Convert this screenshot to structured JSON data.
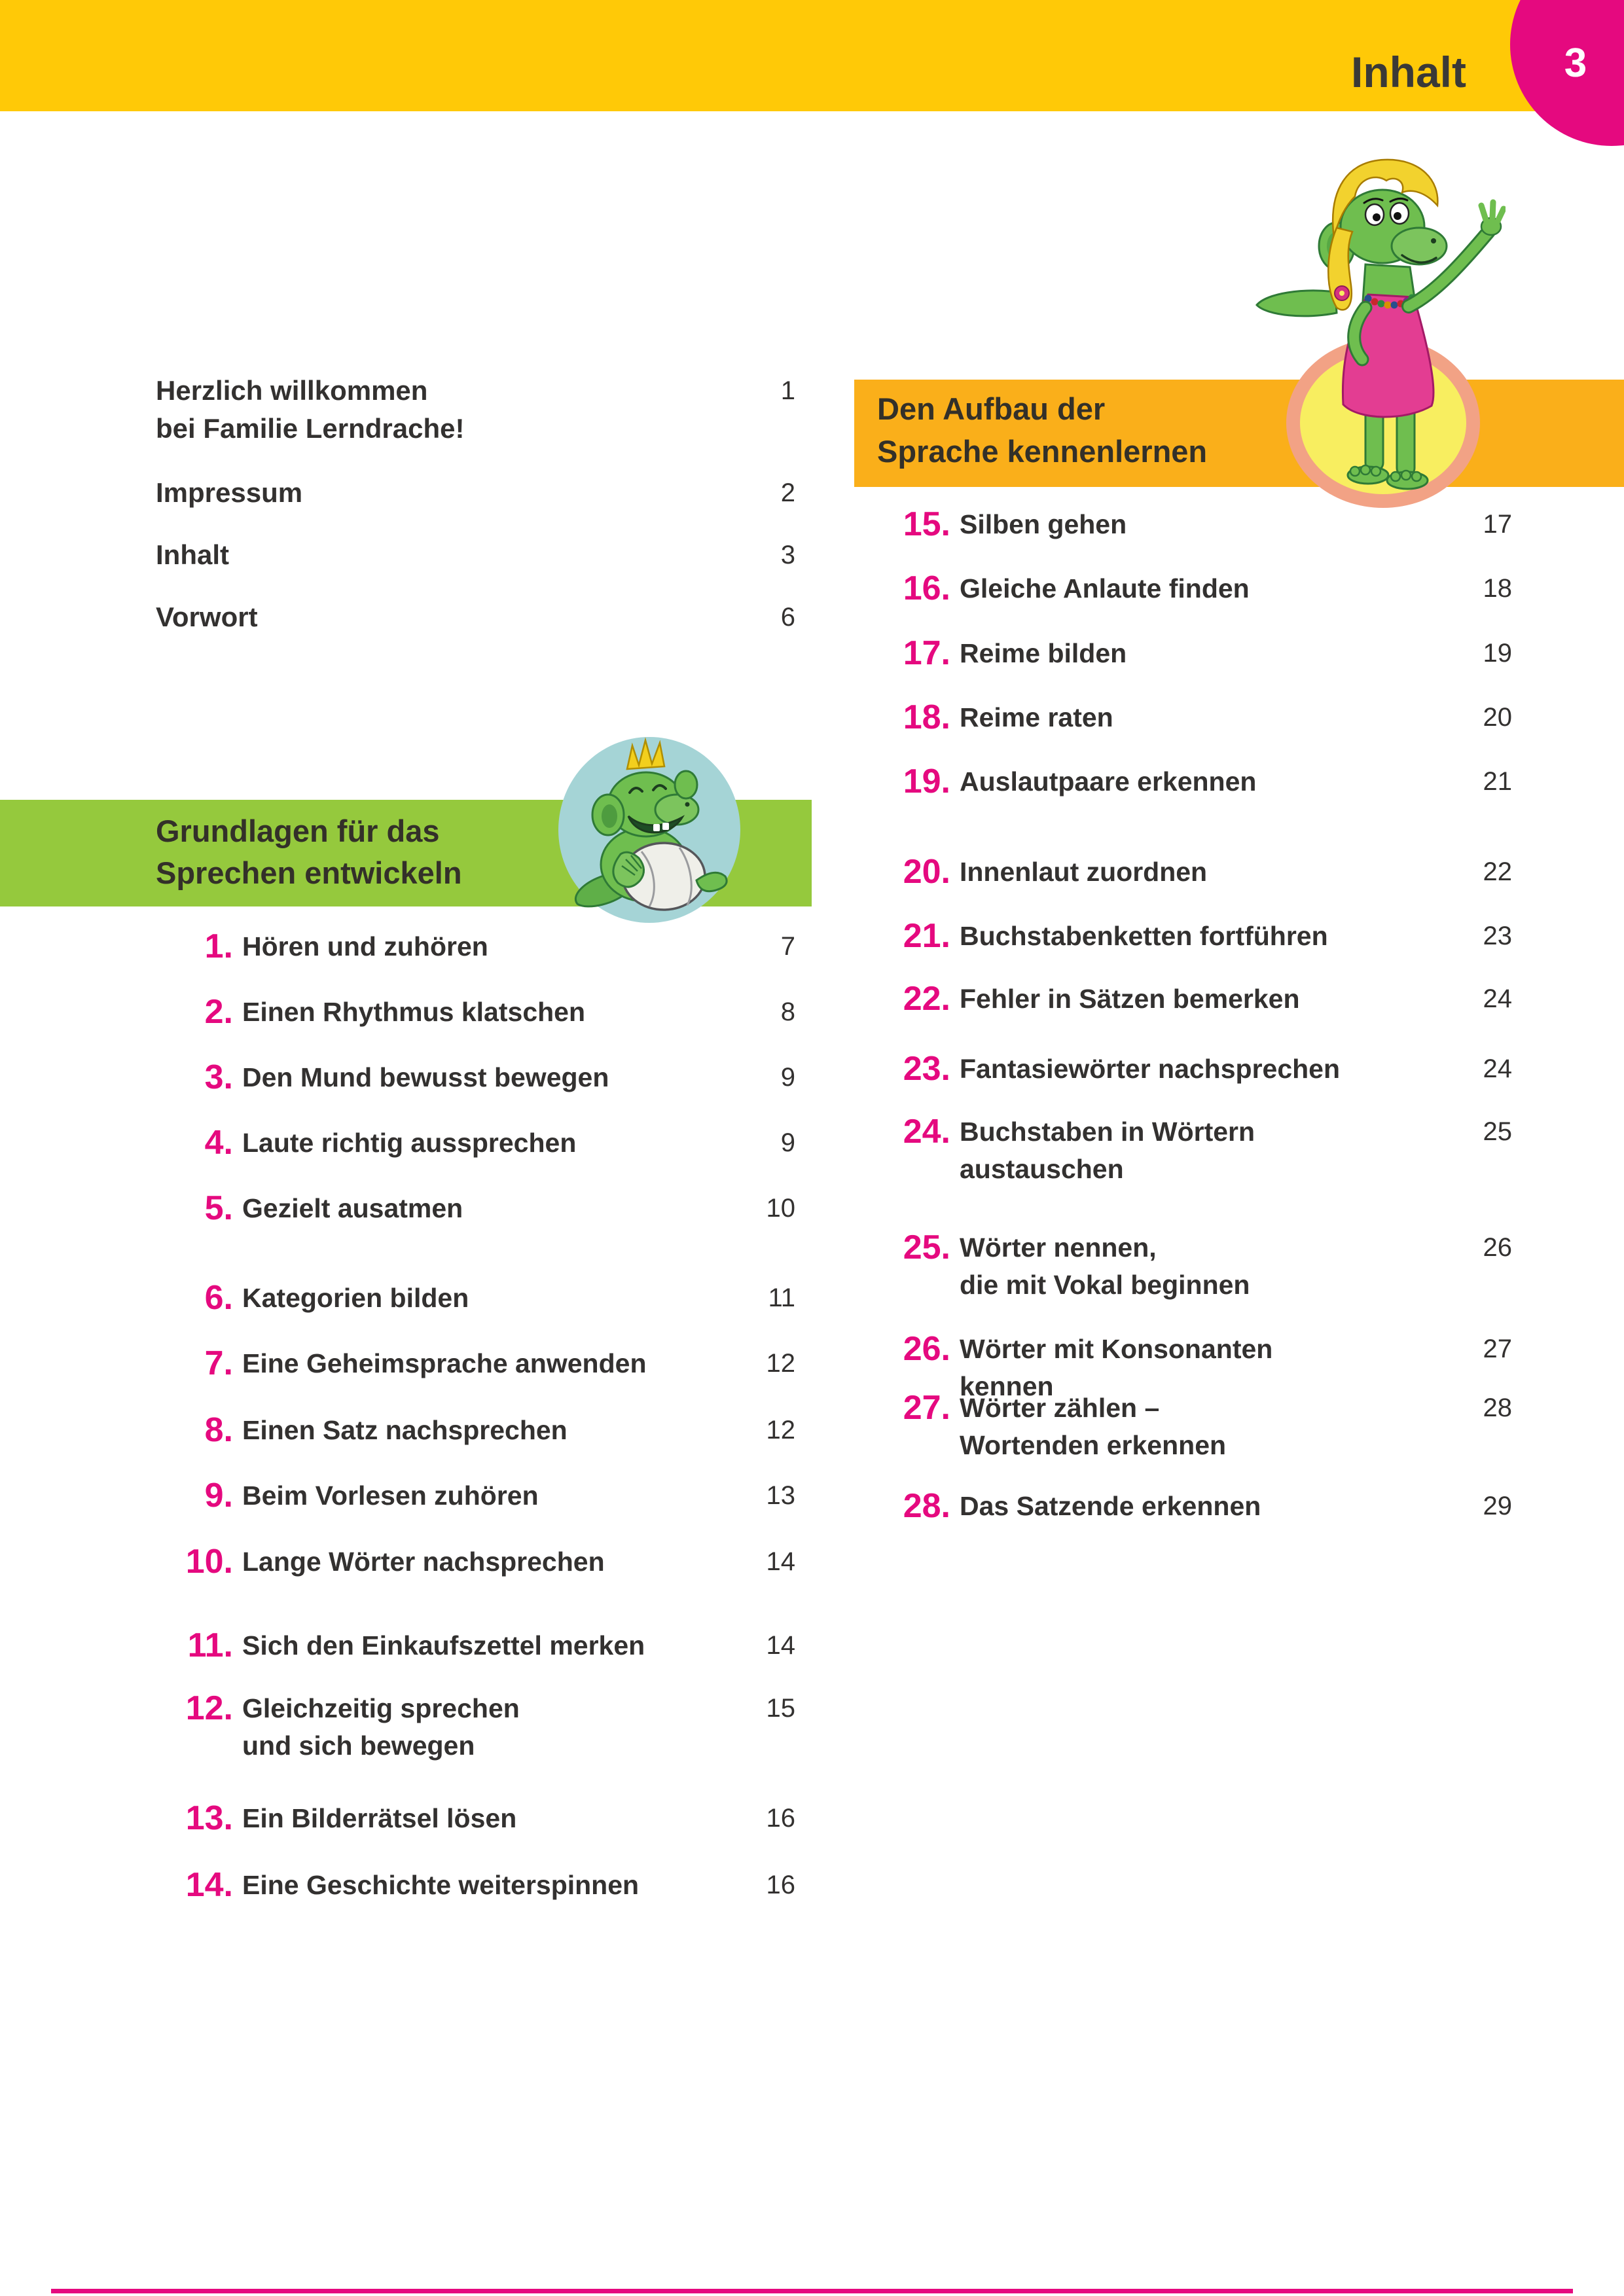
{
  "header": {
    "title": "Inhalt",
    "page_number": "3"
  },
  "colors": {
    "header_yellow": "#FFC907",
    "section2_orange": "#FAAF1A",
    "section1_green": "#95C93D",
    "accent_magenta": "#E5097F",
    "text_ink": "#333130",
    "baby_circle_blue": "#A5D4D6",
    "girl_badge_ring": "#F2A285",
    "girl_badge_yellow": "#F8EE60"
  },
  "intro": {
    "items": [
      {
        "label_lines": [
          "Herzlich willkommen",
          "bei Familie Lerndrache!"
        ],
        "page": "1"
      },
      {
        "label_lines": [
          "Impressum"
        ],
        "page": "2"
      },
      {
        "label_lines": [
          "Inhalt"
        ],
        "page": "3"
      },
      {
        "label_lines": [
          "Vorwort"
        ],
        "page": "6"
      }
    ]
  },
  "section1": {
    "title_lines": [
      "Grundlagen für das",
      "Sprechen entwickeln"
    ],
    "illustration": "baby-dragon-with-crown-and-diaper",
    "items": [
      {
        "num": "1.",
        "label_lines": [
          "Hören und zuhören"
        ],
        "page": "7"
      },
      {
        "num": "2.",
        "label_lines": [
          "Einen Rhythmus klatschen"
        ],
        "page": "8"
      },
      {
        "num": "3.",
        "label_lines": [
          "Den Mund bewusst bewegen"
        ],
        "page": "9"
      },
      {
        "num": "4.",
        "label_lines": [
          "Laute richtig aussprechen"
        ],
        "page": "9"
      },
      {
        "num": "5.",
        "label_lines": [
          "Gezielt ausatmen"
        ],
        "page": "10"
      },
      {
        "num": "6.",
        "label_lines": [
          "Kategorien bilden"
        ],
        "page": "11"
      },
      {
        "num": "7.",
        "label_lines": [
          "Eine Geheimsprache anwenden"
        ],
        "page": "12"
      },
      {
        "num": "8.",
        "label_lines": [
          "Einen Satz nachsprechen"
        ],
        "page": "12"
      },
      {
        "num": "9.",
        "label_lines": [
          "Beim Vorlesen zuhören"
        ],
        "page": "13"
      },
      {
        "num": "10.",
        "label_lines": [
          "Lange Wörter nachsprechen"
        ],
        "page": "14"
      },
      {
        "num": "11.",
        "label_lines": [
          "Sich den Einkaufszettel merken"
        ],
        "page": "14"
      },
      {
        "num": "12.",
        "label_lines": [
          "Gleichzeitig sprechen",
          "und sich bewegen"
        ],
        "page": "15"
      },
      {
        "num": "13.",
        "label_lines": [
          "Ein Bilderrätsel lösen"
        ],
        "page": "16"
      },
      {
        "num": "14.",
        "label_lines": [
          "Eine Geschichte weiterspinnen"
        ],
        "page": "16"
      }
    ]
  },
  "section2": {
    "title_lines": [
      "Den Aufbau der",
      "Sprache kennenlernen"
    ],
    "illustration": "girl-dragon-waving-pink-dress",
    "items": [
      {
        "num": "15.",
        "label_lines": [
          "Silben gehen"
        ],
        "page": "17"
      },
      {
        "num": "16.",
        "label_lines": [
          "Gleiche Anlaute finden"
        ],
        "page": "18"
      },
      {
        "num": "17.",
        "label_lines": [
          "Reime bilden"
        ],
        "page": "19"
      },
      {
        "num": "18.",
        "label_lines": [
          "Reime raten"
        ],
        "page": "20"
      },
      {
        "num": "19.",
        "label_lines": [
          "Auslautpaare erkennen"
        ],
        "page": "21"
      },
      {
        "num": "20.",
        "label_lines": [
          "Innenlaut zuordnen"
        ],
        "page": "22"
      },
      {
        "num": "21.",
        "label_lines": [
          "Buchstabenketten fortführen"
        ],
        "page": "23"
      },
      {
        "num": "22.",
        "label_lines": [
          "Fehler in Sätzen bemerken"
        ],
        "page": "24"
      },
      {
        "num": "23.",
        "label_lines": [
          "Fantasiewörter nachsprechen"
        ],
        "page": "24"
      },
      {
        "num": "24.",
        "label_lines": [
          "Buchstaben in Wörtern",
          "austauschen"
        ],
        "page": "25"
      },
      {
        "num": "25.",
        "label_lines": [
          "Wörter nennen,",
          "die mit Vokal beginnen"
        ],
        "page": "26"
      },
      {
        "num": "26.",
        "label_lines": [
          "Wörter mit Konsonanten kennen"
        ],
        "page": "27"
      },
      {
        "num": "27.",
        "label_lines": [
          "Wörter zählen –",
          "Wortenden erkennen"
        ],
        "page": "28"
      },
      {
        "num": "28.",
        "label_lines": [
          "Das Satzende erkennen"
        ],
        "page": "29"
      }
    ]
  }
}
